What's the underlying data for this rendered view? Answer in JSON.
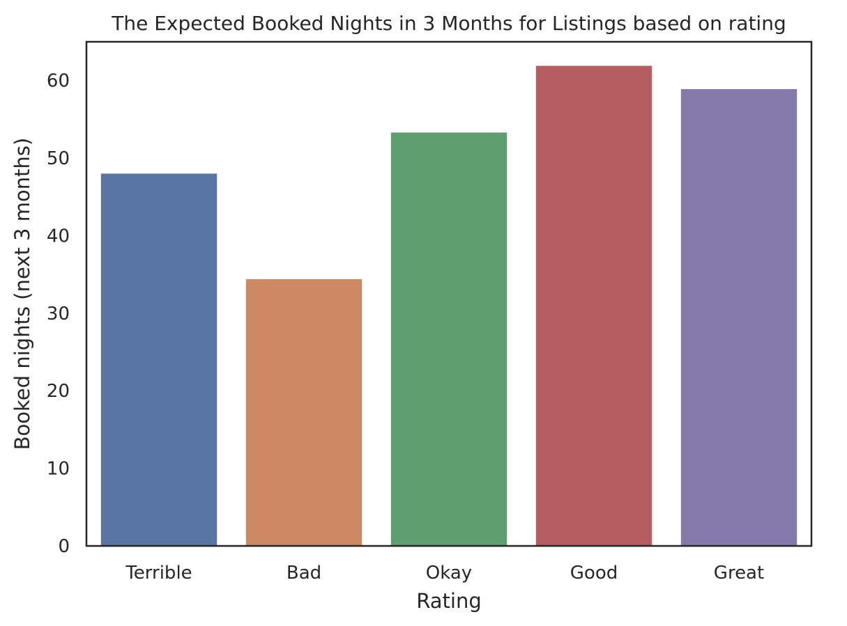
{
  "chart_data": {
    "type": "bar",
    "title": "The Expected Booked Nights in 3 Months for Listings based on rating",
    "xlabel": "Rating",
    "ylabel": "Booked nights (next 3 months)",
    "categories": [
      "Terrible",
      "Bad",
      "Okay",
      "Good",
      "Great"
    ],
    "values": [
      48.0,
      34.4,
      53.3,
      61.9,
      58.9
    ],
    "colors": [
      "#5975a4",
      "#cc8963",
      "#5f9e6e",
      "#b55d60",
      "#857aab"
    ],
    "ylim": [
      0,
      65
    ],
    "yticks": [
      0,
      10,
      20,
      30,
      40,
      50,
      60
    ],
    "grid": false,
    "legend": "none"
  }
}
